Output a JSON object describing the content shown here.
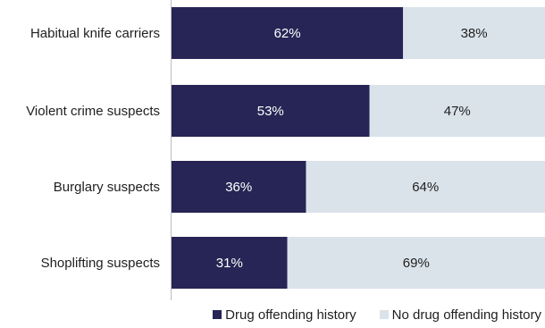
{
  "chart_data": {
    "type": "bar",
    "orientation": "horizontal",
    "stacked": true,
    "title": "",
    "xlabel": "",
    "ylabel": "",
    "xlim": [
      0,
      100
    ],
    "categories": [
      "Habitual knife carriers",
      "Violent crime suspects",
      "Burglary suspects",
      "Shoplifting suspects"
    ],
    "series": [
      {
        "name": "Drug offending history",
        "values": [
          62,
          53,
          36,
          31
        ],
        "labels": [
          "62%",
          "53%",
          "36%",
          "31%"
        ],
        "color": "#262555",
        "label_color": "#ffffff"
      },
      {
        "name": "No drug offending history",
        "values": [
          38,
          47,
          64,
          69
        ],
        "labels": [
          "38%",
          "47%",
          "64%",
          "69%"
        ],
        "color": "#dae3ea",
        "label_color": "#1f1f1f"
      }
    ],
    "legend_position": "bottom-right",
    "grid": false
  }
}
